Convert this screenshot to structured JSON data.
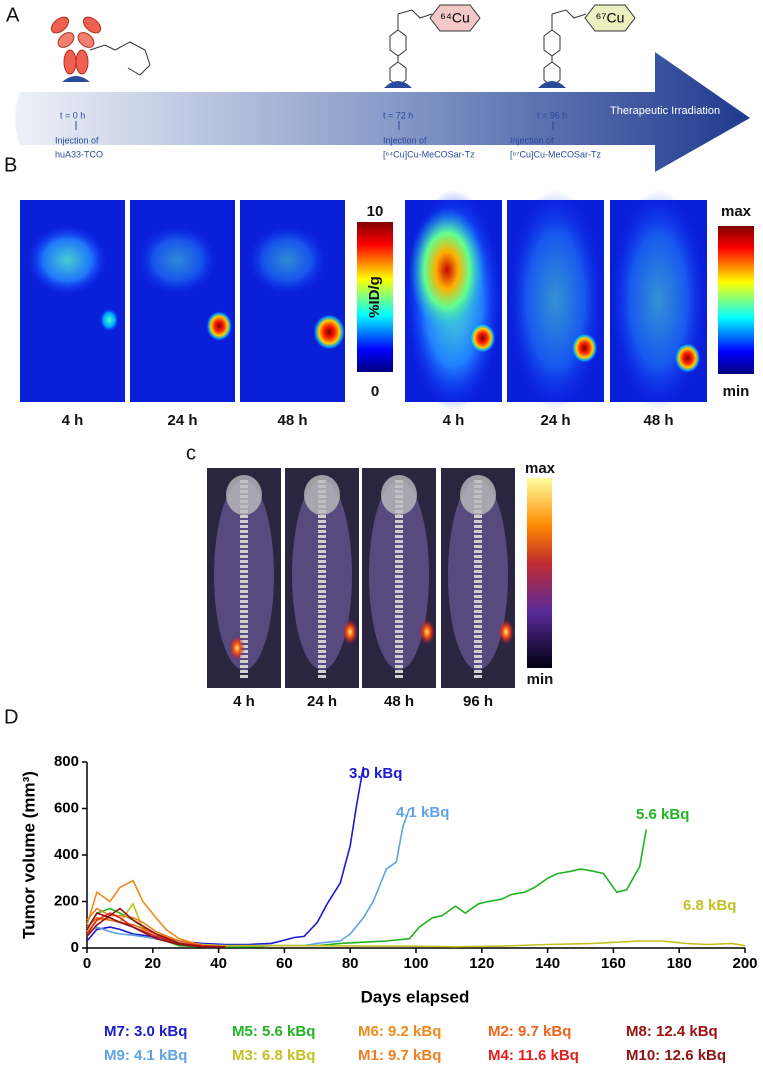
{
  "panel_labels": {
    "a": "A",
    "b": "B",
    "c": "c",
    "d": "D"
  },
  "timeline": {
    "events": [
      {
        "time": "t = 0 h",
        "line1": "Injection of",
        "line2": "huA33-TCO"
      },
      {
        "time": "t = 72 h",
        "line1": "Injection of",
        "line2": "[⁶⁴Cu]Cu-MeCOSar-Tz"
      },
      {
        "time": "t = 96 h",
        "line1": "Injection of",
        "line2": "[⁶⁷Cu]Cu-MeCOSar-Tz"
      }
    ],
    "end_label": "Therapeutic Irradiation",
    "isotopes": [
      "⁶⁴Cu",
      "⁶⁷Cu"
    ]
  },
  "panel_b": {
    "left_times": [
      "4 h",
      "24 h",
      "48 h"
    ],
    "right_times": [
      "4 h",
      "24 h",
      "48 h"
    ],
    "left_scale": {
      "max": "10",
      "min": "0",
      "unit": "%ID/g"
    },
    "right_scale": {
      "max": "max",
      "min": "min"
    }
  },
  "panel_c": {
    "times": [
      "4 h",
      "24 h",
      "48 h",
      "96 h"
    ],
    "scale": {
      "max": "max",
      "min": "min"
    }
  },
  "chart_data": {
    "type": "line",
    "xlabel": "Days elapsed",
    "ylabel": "Tumor volume (mm³)",
    "xlim": [
      0,
      200
    ],
    "ylim": [
      0,
      800
    ],
    "xticks": [
      0,
      20,
      40,
      60,
      80,
      100,
      120,
      140,
      160,
      180,
      200
    ],
    "yticks": [
      0,
      200,
      400,
      600,
      800
    ],
    "series": [
      {
        "name": "M7: 3.0 kBq",
        "color": "#1a1ad0",
        "x": [
          0,
          3,
          7,
          10,
          14,
          17,
          21,
          24,
          28,
          31,
          35,
          42,
          49,
          56,
          59,
          63,
          66,
          70,
          73,
          77,
          80,
          82,
          84
        ],
        "values": [
          30,
          80,
          90,
          80,
          60,
          55,
          45,
          40,
          30,
          25,
          20,
          15,
          15,
          20,
          30,
          45,
          50,
          110,
          190,
          280,
          440,
          620,
          780
        ]
      },
      {
        "name": "M9: 4.1 kBq",
        "color": "#5fa3e6",
        "x": [
          0,
          3,
          7,
          10,
          14,
          21,
          28,
          35,
          42,
          49,
          56,
          63,
          66,
          70,
          73,
          77,
          80,
          84,
          87,
          91,
          94,
          96,
          98
        ],
        "values": [
          60,
          90,
          70,
          60,
          55,
          40,
          25,
          15,
          10,
          10,
          10,
          10,
          10,
          20,
          25,
          30,
          60,
          130,
          200,
          340,
          370,
          520,
          600
        ]
      },
      {
        "name": "M5: 5.6 kBq",
        "color": "#22b422",
        "x": [
          0,
          3,
          7,
          10,
          14,
          17,
          21,
          24,
          28,
          35,
          42,
          49,
          56,
          63,
          70,
          77,
          84,
          91,
          98,
          101,
          105,
          108,
          112,
          115,
          119,
          122,
          126,
          129,
          133,
          136,
          140,
          143,
          147,
          150,
          154,
          157,
          161,
          164,
          166,
          168,
          170
        ],
        "values": [
          80,
          150,
          170,
          150,
          120,
          90,
          60,
          30,
          10,
          5,
          5,
          5,
          10,
          10,
          10,
          20,
          25,
          30,
          40,
          90,
          130,
          140,
          180,
          150,
          190,
          200,
          210,
          230,
          240,
          260,
          300,
          320,
          330,
          340,
          330,
          320,
          240,
          250,
          300,
          350,
          510
        ]
      },
      {
        "name": "M3: 6.8 kBq",
        "color": "#c4c020",
        "x": [
          0,
          3,
          7,
          10,
          14,
          17,
          21,
          28,
          35,
          42,
          56,
          70,
          84,
          98,
          112,
          126,
          140,
          154,
          168,
          175,
          182,
          189,
          196,
          200
        ],
        "values": [
          70,
          120,
          130,
          110,
          190,
          80,
          60,
          30,
          15,
          10,
          10,
          10,
          8,
          8,
          5,
          8,
          15,
          20,
          30,
          30,
          20,
          15,
          20,
          10
        ]
      },
      {
        "name": "M6: 9.2 kBq",
        "color": "#f08a1a",
        "x": [
          0,
          3,
          7,
          10,
          14,
          17,
          21,
          24,
          28,
          35,
          42
        ],
        "values": [
          100,
          240,
          200,
          260,
          290,
          200,
          130,
          80,
          40,
          10,
          5
        ]
      },
      {
        "name": "M1: 9.7 kBq",
        "color": "#f07e20",
        "x": [
          0,
          3,
          7,
          10,
          14,
          17,
          21,
          28,
          35,
          42
        ],
        "values": [
          120,
          170,
          140,
          140,
          130,
          110,
          70,
          30,
          10,
          5
        ]
      },
      {
        "name": "M2: 9.7 kBq",
        "color": "#f0641a",
        "x": [
          0,
          3,
          7,
          10,
          14,
          21,
          28,
          35,
          42
        ],
        "values": [
          90,
          130,
          120,
          110,
          100,
          60,
          30,
          10,
          5
        ]
      },
      {
        "name": "M4: 11.6 kBq",
        "color": "#e61e1e",
        "x": [
          0,
          3,
          7,
          10,
          14,
          21,
          28,
          35,
          42
        ],
        "values": [
          60,
          120,
          150,
          130,
          90,
          50,
          20,
          10,
          5
        ]
      },
      {
        "name": "M8: 12.4 kBq",
        "color": "#9b1010",
        "x": [
          0,
          3,
          7,
          10,
          14,
          21,
          28,
          35,
          42
        ],
        "values": [
          50,
          100,
          140,
          170,
          120,
          60,
          20,
          5,
          5
        ]
      },
      {
        "name": "M10: 12.6 kBq",
        "color": "#8c1414",
        "x": [
          0,
          3,
          7,
          10,
          14,
          21,
          28,
          35,
          42
        ],
        "values": [
          80,
          150,
          130,
          110,
          90,
          40,
          15,
          5,
          5
        ]
      }
    ],
    "annotations": [
      {
        "text": "3.0 kBq",
        "color": "#1a1ad0"
      },
      {
        "text": "4.1 kBq",
        "color": "#5fa3e6"
      },
      {
        "text": "5.6 kBq",
        "color": "#22b422"
      },
      {
        "text": "6.8 kBq",
        "color": "#c4c020"
      }
    ]
  }
}
